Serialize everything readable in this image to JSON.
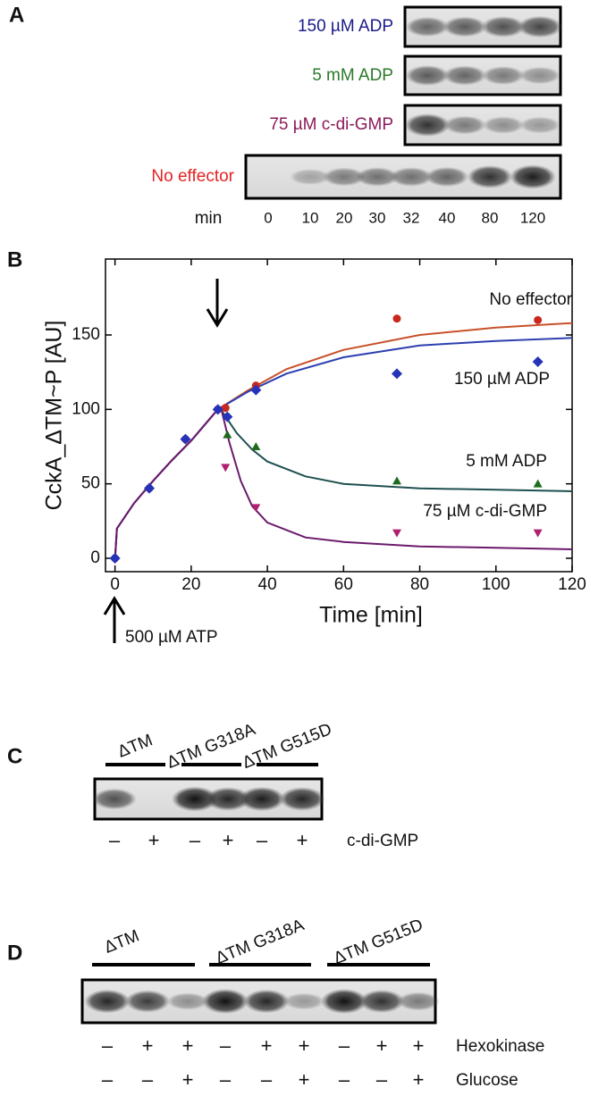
{
  "panel_a": {
    "label": "A",
    "rows": [
      {
        "text": "150 µM ADP",
        "color": "#1a1a8c"
      },
      {
        "text": "5 mM ADP",
        "color": "#2a7a2a"
      },
      {
        "text": "75 µM c-di-GMP",
        "color": "#8b1a5a"
      },
      {
        "text": "No effector",
        "color": "#e52222"
      }
    ],
    "time_label": "min",
    "times": [
      "0",
      "10",
      "20",
      "30",
      "32",
      "40",
      "80",
      "120"
    ]
  },
  "chart_data": {
    "type": "scatter",
    "panel_label": "B",
    "x_label": "Time [min]",
    "y_label": "CckA_ΔTM~P [AU]",
    "annotation": "500 µM ATP",
    "xlim": [
      -2.5,
      120
    ],
    "ylim": [
      -9,
      201
    ],
    "xticks": [
      0,
      20,
      40,
      60,
      80,
      100,
      120
    ],
    "yticks": [
      0,
      50,
      100,
      150
    ],
    "series": [
      {
        "name": "No effector",
        "color": "#c8281e",
        "line_color": "#c8502a",
        "marker": "circle",
        "x": [
          0,
          9,
          18.5,
          27,
          29,
          37,
          74,
          111
        ],
        "values": [
          0,
          47,
          80,
          100,
          101,
          116,
          161,
          160
        ],
        "fit_x": [
          0,
          0.5,
          5,
          10,
          15,
          20,
          27,
          35,
          45,
          60,
          80,
          100,
          120
        ],
        "fit_y": [
          0,
          20,
          37,
          52,
          66,
          79,
          100,
          113,
          127,
          140,
          150,
          155,
          158
        ]
      },
      {
        "name": "150 µM ADP",
        "color": "#2533b8",
        "line_color": "#2c3fb0",
        "marker": "diamond",
        "x": [
          0,
          9,
          18.5,
          27,
          29.5,
          37,
          74,
          111
        ],
        "values": [
          0,
          47,
          80,
          100,
          95,
          113,
          124,
          132
        ],
        "fit_x": [
          0,
          0.5,
          5,
          10,
          15,
          20,
          27,
          35,
          45,
          60,
          80,
          100,
          120
        ],
        "fit_y": [
          0,
          20,
          37,
          52,
          66,
          79,
          100,
          112,
          124,
          135,
          143,
          146,
          148
        ]
      },
      {
        "name": "5 mM ADP",
        "color": "#1e6b1e",
        "line_color": "#1f4f4f",
        "marker": "triangle-up",
        "x": [
          29.5,
          37,
          74,
          111
        ],
        "values": [
          83,
          75,
          52,
          50
        ],
        "fit_x": [
          27,
          28,
          32,
          36,
          40,
          50,
          60,
          80,
          100,
          120
        ],
        "fit_y": [
          100,
          99,
          84,
          73,
          65,
          55,
          50,
          47,
          46,
          45
        ]
      },
      {
        "name": "75 µM c-di-GMP",
        "color": "#b0206e",
        "line_color": "#6b1a6b",
        "marker": "triangle-down",
        "x": [
          29,
          37,
          74,
          111
        ],
        "values": [
          61,
          34,
          17,
          17
        ],
        "fit_x": [
          0,
          0.5,
          5,
          10,
          15,
          20,
          27,
          28,
          30,
          33,
          36,
          40,
          50,
          60,
          80,
          100,
          120
        ],
        "fit_y": [
          0,
          20,
          37,
          52,
          66,
          79,
          100,
          99,
          78,
          52,
          35,
          24,
          14,
          11,
          8,
          7,
          6
        ]
      }
    ]
  },
  "panel_c": {
    "label": "C",
    "groups": [
      "ΔTM",
      "ΔTM G318A",
      "ΔTM G515D"
    ],
    "signs": [
      "–",
      "+",
      "–",
      "+",
      "–",
      "+"
    ],
    "row_label": "c-di-GMP"
  },
  "panel_d": {
    "label": "D",
    "groups": [
      "ΔTM",
      "ΔTM G318A",
      "ΔTM G515D"
    ],
    "rows": [
      {
        "label": "Hexokinase",
        "signs": [
          "–",
          "+",
          "+",
          "–",
          "+",
          "+",
          "–",
          "+",
          "+"
        ]
      },
      {
        "label": "Glucose",
        "signs": [
          "–",
          "–",
          "+",
          "–",
          "–",
          "+",
          "–",
          "–",
          "+"
        ]
      }
    ]
  }
}
